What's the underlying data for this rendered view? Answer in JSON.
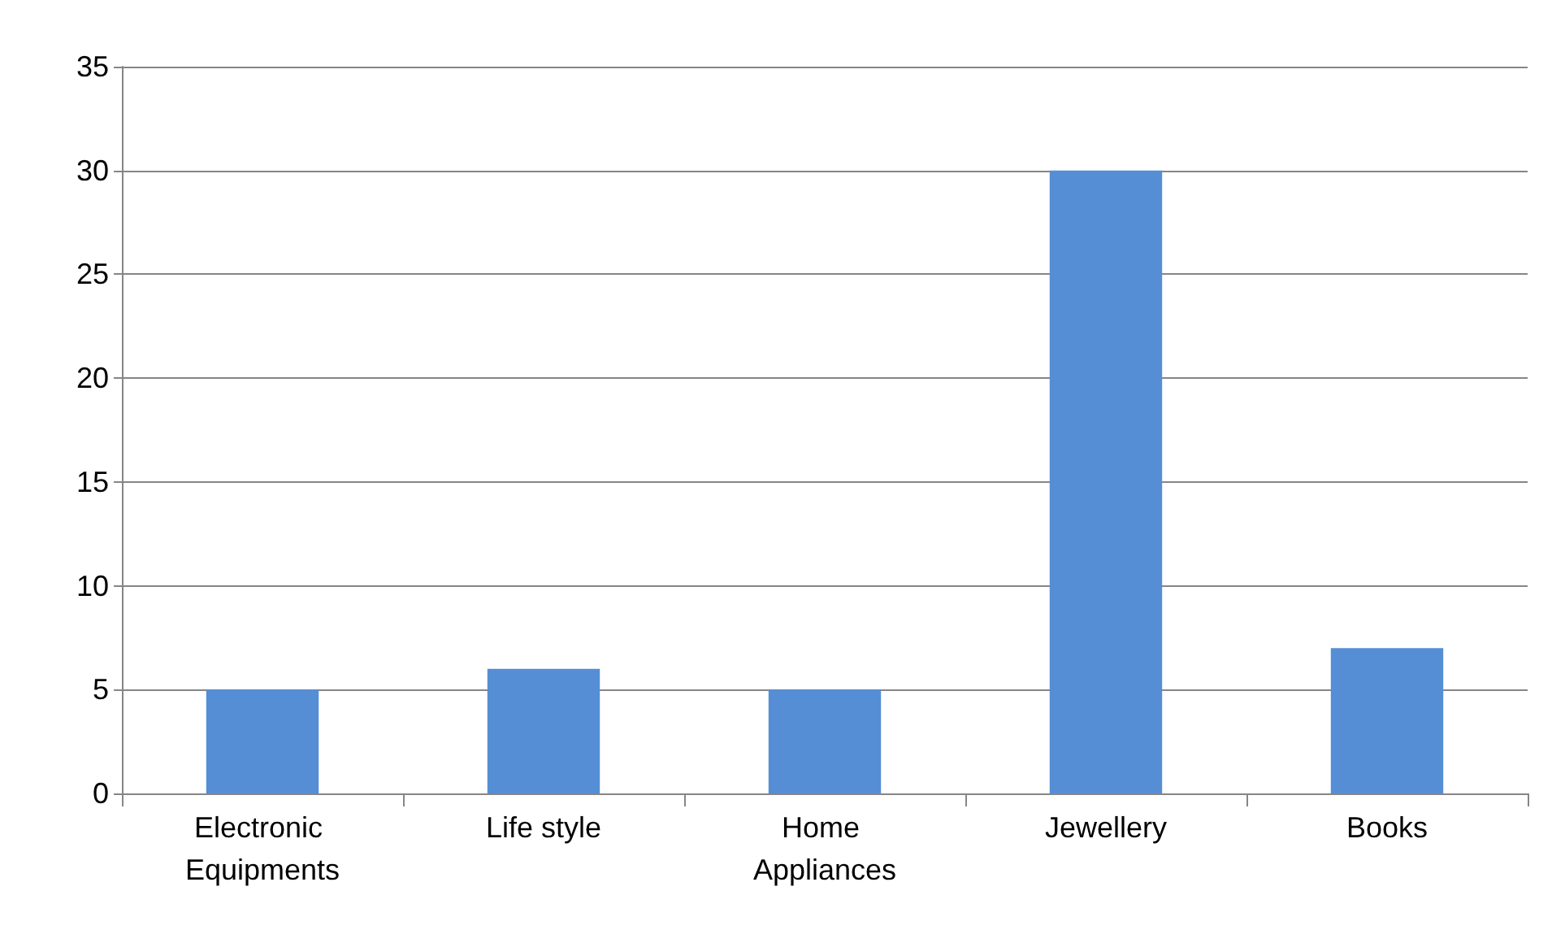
{
  "chart_data": {
    "type": "bar",
    "categories": [
      "Electronic Equipments",
      "Life style",
      "Home Appliances",
      "Jewellery",
      "Books"
    ],
    "values": [
      5,
      6,
      5,
      30,
      7
    ],
    "color": "#558ed5",
    "ylim": [
      0,
      35
    ],
    "yticks": [
      0,
      5,
      10,
      15,
      20,
      25,
      30,
      35
    ],
    "grid": "y"
  }
}
